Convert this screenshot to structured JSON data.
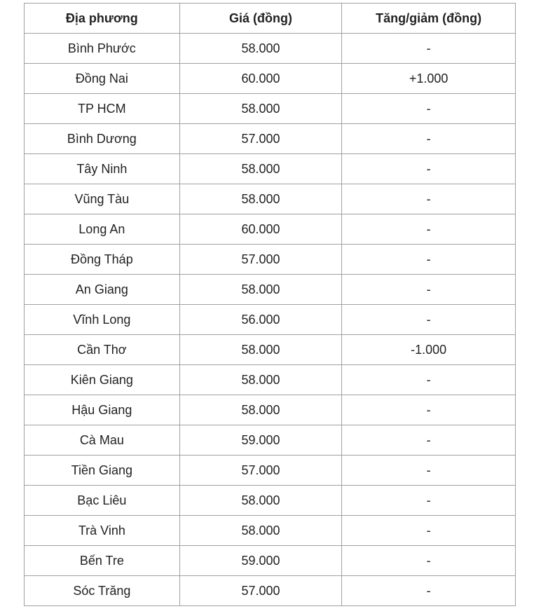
{
  "table": {
    "headers": [
      "Địa phương",
      "Giá (đồng)",
      "Tăng/giảm (đồng)"
    ],
    "rows": [
      [
        "Bình Phước",
        "58.000",
        "-"
      ],
      [
        "Đồng Nai",
        "60.000",
        "+1.000"
      ],
      [
        "TP HCM",
        "58.000",
        "-"
      ],
      [
        "Bình Dương",
        "57.000",
        "-"
      ],
      [
        "Tây Ninh",
        "58.000",
        "-"
      ],
      [
        "Vũng Tàu",
        "58.000",
        "-"
      ],
      [
        "Long An",
        "60.000",
        "-"
      ],
      [
        "Đồng Tháp",
        "57.000",
        "-"
      ],
      [
        "An Giang",
        "58.000",
        "-"
      ],
      [
        "Vĩnh Long",
        "56.000",
        "-"
      ],
      [
        "Cần Thơ",
        "58.000",
        "-1.000"
      ],
      [
        "Kiên Giang",
        "58.000",
        "-"
      ],
      [
        "Hậu Giang",
        "58.000",
        "-"
      ],
      [
        "Cà Mau",
        "59.000",
        "-"
      ],
      [
        "Tiền Giang",
        "57.000",
        "-"
      ],
      [
        "Bạc Liêu",
        "58.000",
        "-"
      ],
      [
        "Trà Vinh",
        "58.000",
        "-"
      ],
      [
        "Bến Tre",
        "59.000",
        "-"
      ],
      [
        "Sóc Trăng",
        "57.000",
        "-"
      ]
    ]
  }
}
